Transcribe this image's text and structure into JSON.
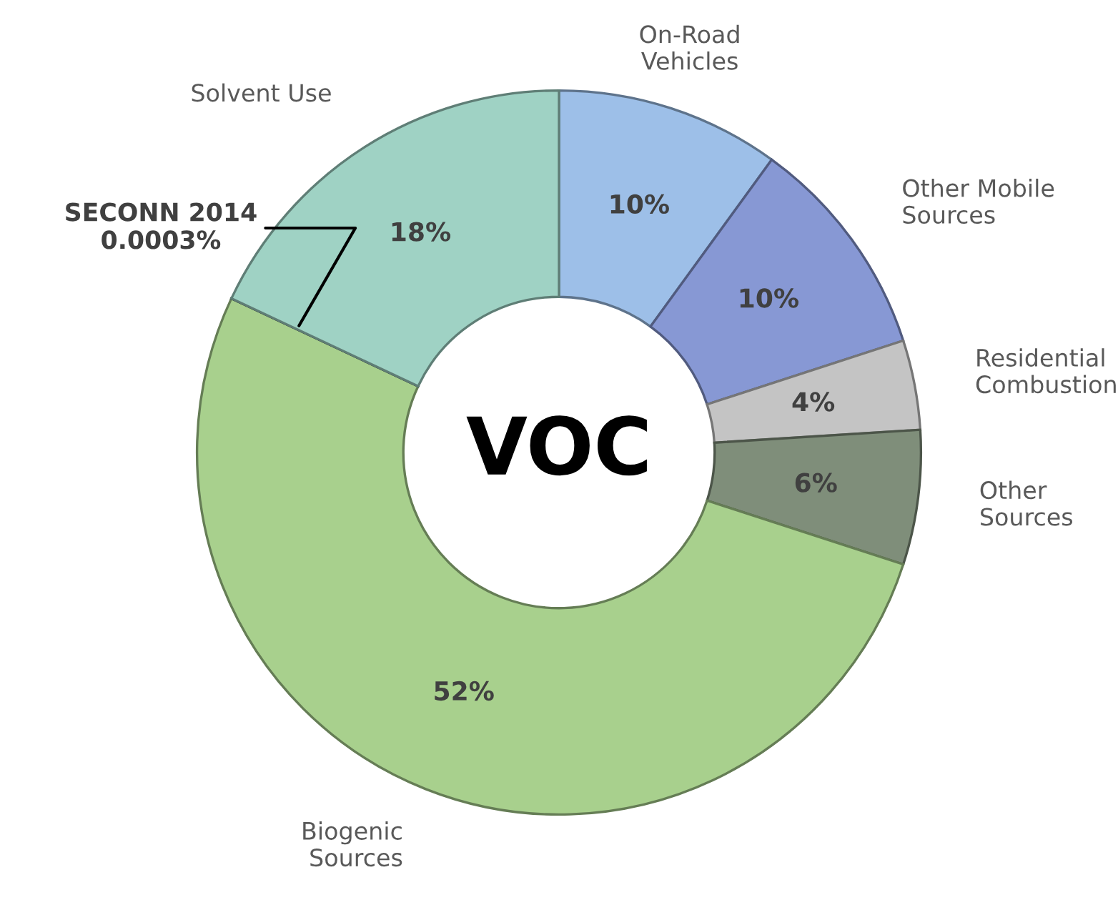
{
  "chart_data": {
    "type": "donut",
    "title": "VOC",
    "categories": [
      "On-Road Vehicles",
      "Other Mobile Sources",
      "Residential Combustion",
      "Other Sources",
      "Biogenic Sources",
      "SECONN 2014",
      "Solvent Use"
    ],
    "values": [
      10,
      10,
      4,
      6,
      52,
      0.0003,
      18
    ],
    "colors": [
      "#9dbfe8",
      "#8798d4",
      "#c4c4c4",
      "#7f8e7a",
      "#a8d08d",
      "#1f1f1f",
      "#9fd2c4"
    ],
    "value_labels": [
      "10%",
      "10%",
      "4%",
      "6%",
      "52%",
      "0.0003%",
      "18%"
    ],
    "legend": false
  }
}
